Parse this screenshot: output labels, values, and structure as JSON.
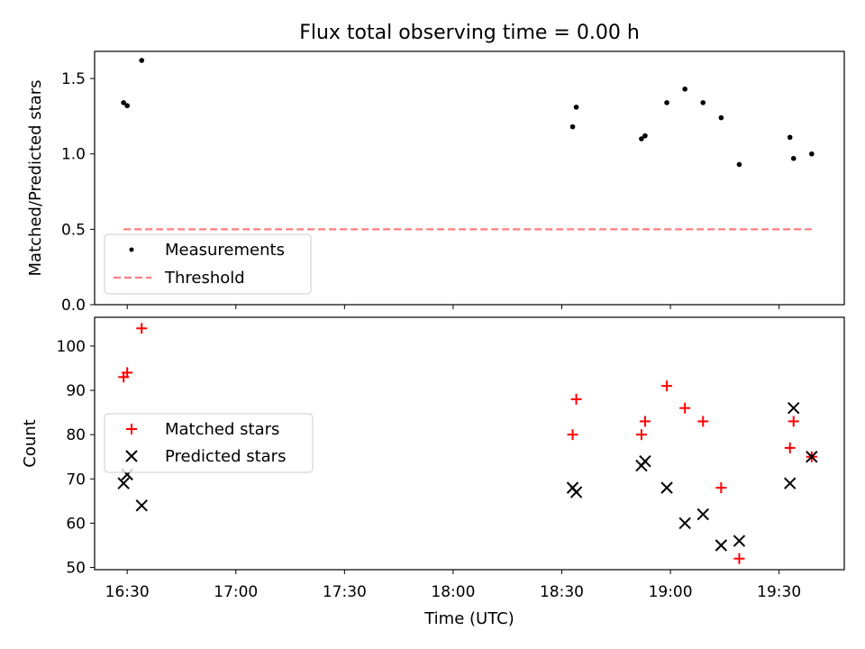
{
  "figure_title": "Flux total observing time = 0.00 h",
  "chart_data": [
    {
      "type": "scatter",
      "ylabel": "Matched/Predicted stars",
      "xlabel": "",
      "xlim": [
        "16:21",
        "19:48"
      ],
      "ylim": [
        0,
        1.68
      ],
      "yticks": [
        0,
        0.5,
        1.0,
        1.5
      ],
      "ytick_labels": [
        "0.0",
        "0.5",
        "1.0",
        "1.5"
      ],
      "grid": false,
      "legend_placement": "lower-left",
      "series": [
        {
          "name": "Measurements",
          "kind": "scatter",
          "marker": "dot",
          "color": "#000000",
          "points": [
            {
              "x": "16:29",
              "y": 1.34
            },
            {
              "x": "16:30",
              "y": 1.32
            },
            {
              "x": "16:34",
              "y": 1.62
            },
            {
              "x": "18:33",
              "y": 1.18
            },
            {
              "x": "18:34",
              "y": 1.31
            },
            {
              "x": "18:52",
              "y": 1.1
            },
            {
              "x": "18:53",
              "y": 1.12
            },
            {
              "x": "18:59",
              "y": 1.34
            },
            {
              "x": "19:04",
              "y": 1.43
            },
            {
              "x": "19:09",
              "y": 1.34
            },
            {
              "x": "19:14",
              "y": 1.24
            },
            {
              "x": "19:19",
              "y": 0.93
            },
            {
              "x": "19:33",
              "y": 1.11
            },
            {
              "x": "19:34",
              "y": 0.97
            },
            {
              "x": "19:39",
              "y": 1.0
            }
          ]
        },
        {
          "name": "Threshold",
          "kind": "line",
          "style": "dashed",
          "color": "#ff7f7f",
          "points": [
            {
              "x": "16:29",
              "y": 0.5
            },
            {
              "x": "19:39",
              "y": 0.5
            }
          ]
        }
      ]
    },
    {
      "type": "scatter",
      "ylabel": "Count",
      "xlabel": "Time (UTC)",
      "xlim": [
        "16:21",
        "19:48"
      ],
      "ylim": [
        49.5,
        106.5
      ],
      "yticks": [
        50,
        60,
        70,
        80,
        90,
        100
      ],
      "ytick_labels": [
        "50",
        "60",
        "70",
        "80",
        "90",
        "100"
      ],
      "xticks": [
        "16:30",
        "17:00",
        "17:30",
        "18:00",
        "18:30",
        "19:00",
        "19:30"
      ],
      "grid": false,
      "legend_placement": "center-left",
      "series": [
        {
          "name": "Matched stars",
          "kind": "scatter",
          "marker": "plus",
          "color": "#ff0000",
          "points": [
            {
              "x": "16:29",
              "y": 93
            },
            {
              "x": "16:30",
              "y": 94
            },
            {
              "x": "16:34",
              "y": 104
            },
            {
              "x": "18:33",
              "y": 80
            },
            {
              "x": "18:34",
              "y": 88
            },
            {
              "x": "18:52",
              "y": 80
            },
            {
              "x": "18:53",
              "y": 83
            },
            {
              "x": "18:59",
              "y": 91
            },
            {
              "x": "19:04",
              "y": 86
            },
            {
              "x": "19:09",
              "y": 83
            },
            {
              "x": "19:14",
              "y": 68
            },
            {
              "x": "19:19",
              "y": 52
            },
            {
              "x": "19:33",
              "y": 77
            },
            {
              "x": "19:34",
              "y": 83
            },
            {
              "x": "19:39",
              "y": 75
            }
          ]
        },
        {
          "name": "Predicted stars",
          "kind": "scatter",
          "marker": "x",
          "color": "#000000",
          "points": [
            {
              "x": "16:29",
              "y": 69
            },
            {
              "x": "16:30",
              "y": 71
            },
            {
              "x": "16:34",
              "y": 64
            },
            {
              "x": "18:33",
              "y": 68
            },
            {
              "x": "18:34",
              "y": 67
            },
            {
              "x": "18:52",
              "y": 73
            },
            {
              "x": "18:53",
              "y": 74
            },
            {
              "x": "18:59",
              "y": 68
            },
            {
              "x": "19:04",
              "y": 60
            },
            {
              "x": "19:09",
              "y": 62
            },
            {
              "x": "19:14",
              "y": 55
            },
            {
              "x": "19:19",
              "y": 56
            },
            {
              "x": "19:33",
              "y": 69
            },
            {
              "x": "19:34",
              "y": 86
            },
            {
              "x": "19:39",
              "y": 75
            }
          ]
        }
      ]
    }
  ]
}
